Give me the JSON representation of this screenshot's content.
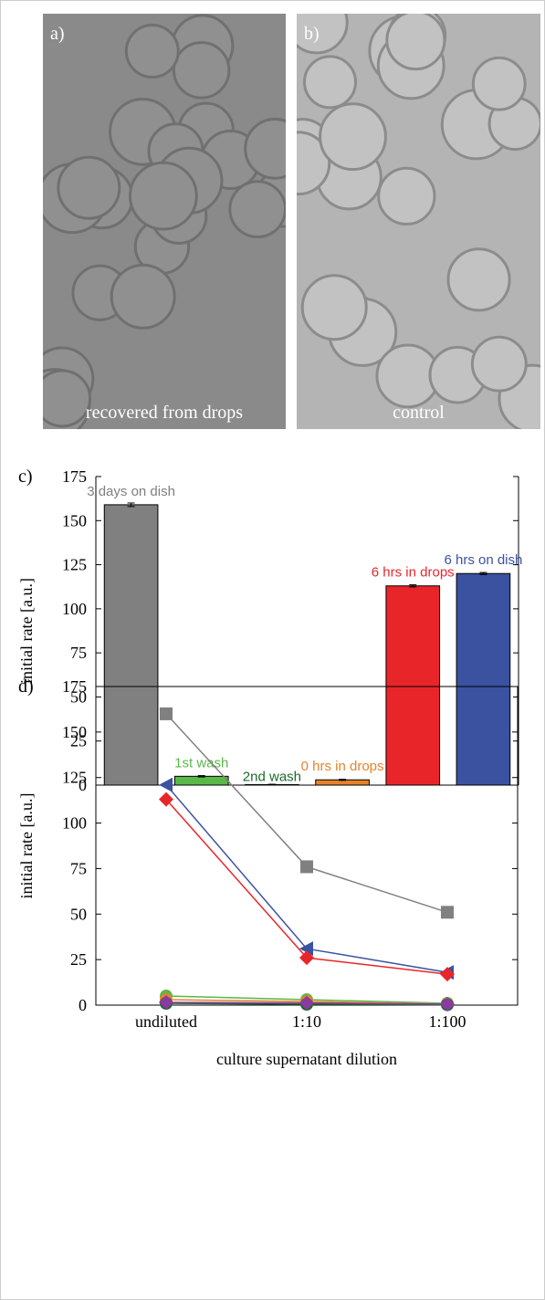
{
  "images": [
    {
      "label": "a)",
      "caption": "recovered from drops"
    },
    {
      "label": "b)",
      "caption": "control"
    }
  ],
  "chart_data": [
    {
      "type": "bar",
      "panel_label": "c)",
      "y_label": "initial rate [a.u.]",
      "categories": [
        "3 days on dish",
        "1st wash",
        "2nd wash",
        "0 hrs in drops",
        "6 hrs in drops",
        "6 hrs on dish"
      ],
      "values": [
        159,
        5,
        0.3,
        3,
        113,
        120
      ],
      "errors": [
        1,
        0.4,
        0.2,
        0.3,
        0.6,
        0.6
      ],
      "colors": [
        "#808080",
        "#5ab848",
        "#1a6b2a",
        "#e8822a",
        "#e8262a",
        "#3a52a0"
      ],
      "ylim": [
        0,
        175
      ],
      "yticks": [
        0,
        25,
        50,
        75,
        100,
        125,
        150,
        175
      ]
    },
    {
      "type": "line",
      "panel_label": "d)",
      "y_label": "initial rate [a.u.]",
      "x_label": "culture supernatant dilution",
      "categories": [
        "undiluted",
        "1:10",
        "1:100"
      ],
      "series": [
        {
          "color": "#808080",
          "marker": "square",
          "values": [
            160,
            76,
            51
          ]
        },
        {
          "color": "#3a52a0",
          "marker": "triangle-left",
          "values": [
            121,
            31,
            18
          ]
        },
        {
          "color": "#e8262a",
          "marker": "diamond",
          "values": [
            113,
            26,
            17
          ]
        },
        {
          "color": "#5ab848",
          "marker": "circle",
          "values": [
            5,
            3,
            1
          ]
        },
        {
          "color": "#e8822a",
          "marker": "circle",
          "values": [
            3,
            2,
            0.5
          ]
        },
        {
          "color": "#1a6b2a",
          "marker": "circle",
          "values": [
            1,
            0.5,
            0.2
          ]
        },
        {
          "color": "#8a3aa0",
          "marker": "diamond",
          "values": [
            1.5,
            1.2,
            0.5
          ]
        }
      ],
      "ylim": [
        0,
        175
      ],
      "yticks": [
        0,
        25,
        50,
        75,
        100,
        125,
        150,
        175
      ]
    }
  ]
}
